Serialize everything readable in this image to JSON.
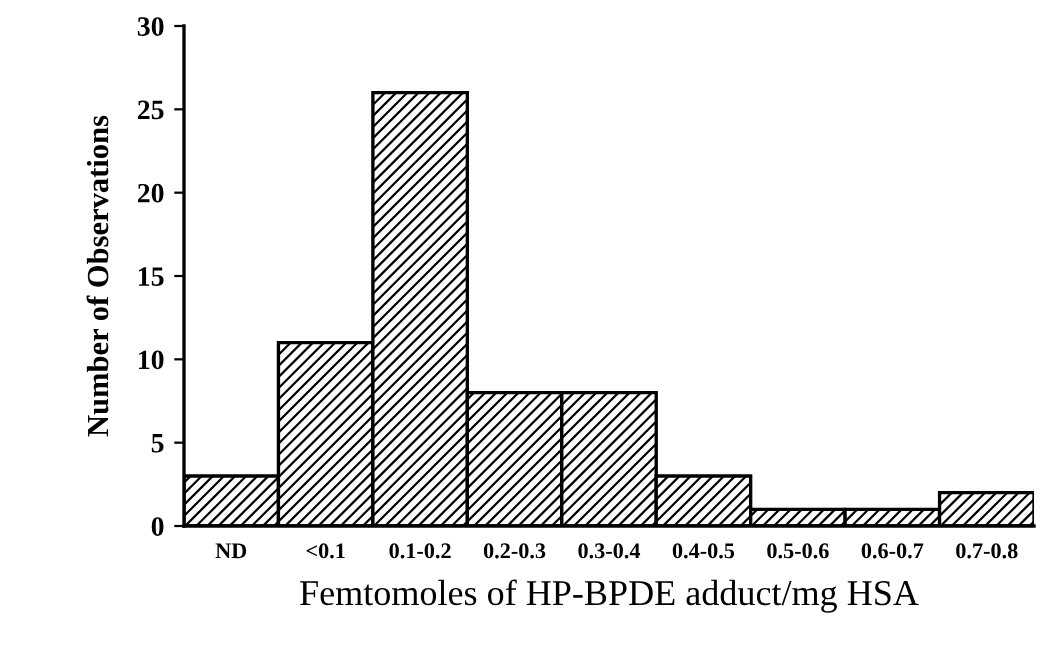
{
  "chart_data": {
    "type": "bar",
    "xlabel": "Femtomoles of HP-BPDE adduct/mg HSA",
    "ylabel": "Number of Observations",
    "categories": [
      "ND",
      "<0.1",
      "0.1-0.2",
      "0.2-0.3",
      "0.3-0.4",
      "0.4-0.5",
      "0.5-0.6",
      "0.6-0.7",
      "0.7-0.8"
    ],
    "values": [
      3,
      11,
      26,
      8,
      8,
      3,
      1,
      1,
      2
    ],
    "color": "#000000",
    "ylim": [
      0,
      30
    ],
    "yticks": [
      0,
      5,
      10,
      15,
      20,
      25,
      30
    ],
    "grid": false,
    "legend": false
  }
}
